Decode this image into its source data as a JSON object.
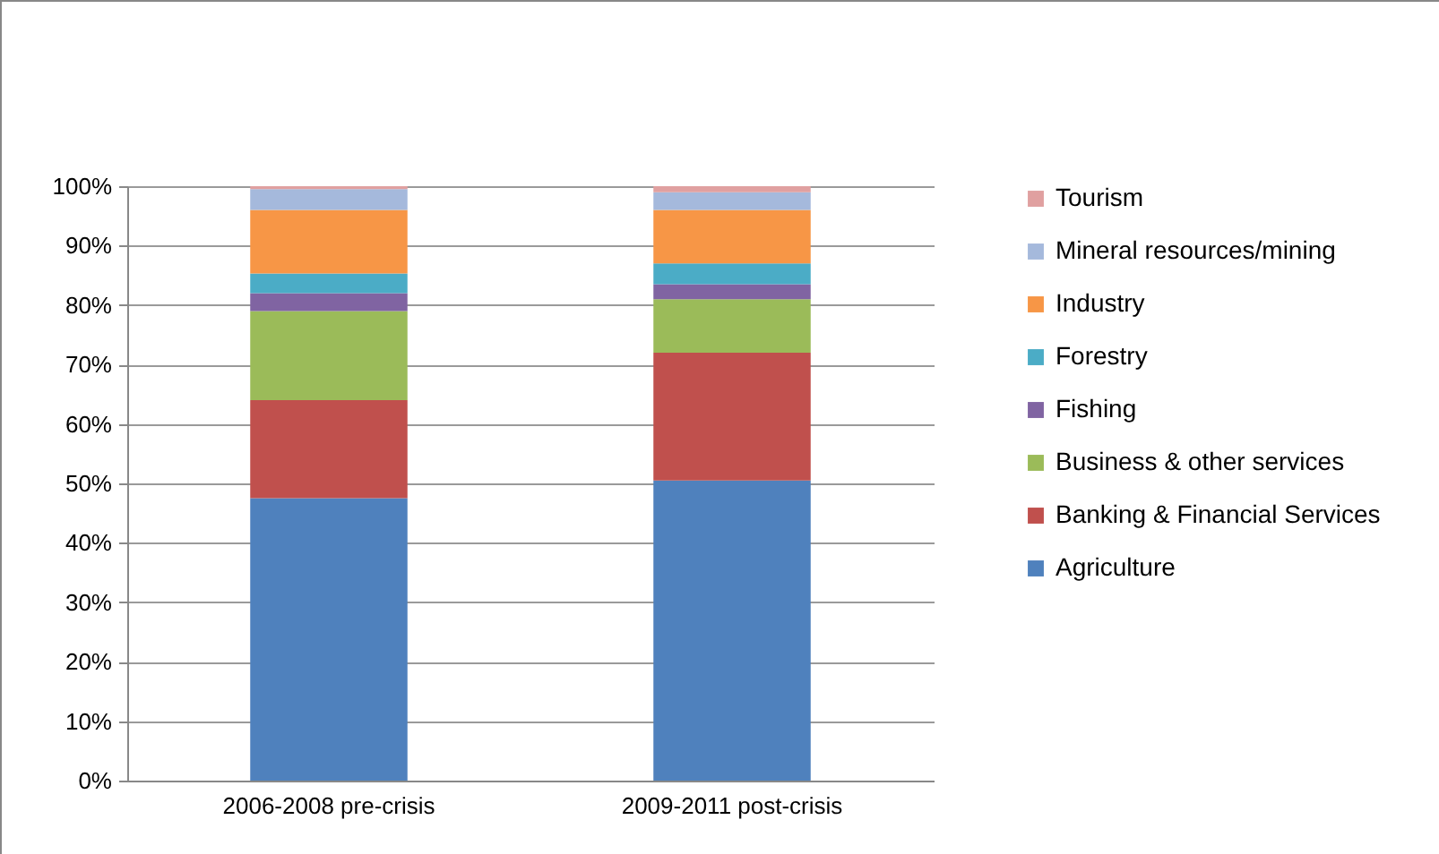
{
  "chart_data": {
    "type": "bar",
    "stacked": true,
    "categories": [
      "2006-2008 pre-crisis",
      "2009-2011 post-crisis"
    ],
    "series": [
      {
        "name": "Agriculture",
        "color": "#4f81bd",
        "values": [
          47.5,
          50.5
        ]
      },
      {
        "name": "Banking & Financial Services",
        "color": "#c0504d",
        "values": [
          16.5,
          21.5
        ]
      },
      {
        "name": "Business & other services",
        "color": "#9bbb59",
        "values": [
          15,
          9
        ]
      },
      {
        "name": "Fishing",
        "color": "#8064a2",
        "values": [
          3,
          2.5
        ]
      },
      {
        "name": "Forestry",
        "color": "#4bacc6",
        "values": [
          3.3,
          3.5
        ]
      },
      {
        "name": "Industry",
        "color": "#f79646",
        "values": [
          10.7,
          9
        ]
      },
      {
        "name": "Mineral resources/mining",
        "color": "#a5b9dc",
        "values": [
          3.5,
          3
        ]
      },
      {
        "name": "Tourism",
        "color": "#e0a0a0",
        "values": [
          0.5,
          1
        ]
      }
    ],
    "ylim": [
      0,
      100
    ],
    "yticks": [
      {
        "value": 0,
        "label": "0%"
      },
      {
        "value": 10,
        "label": "10%"
      },
      {
        "value": 20,
        "label": "20%"
      },
      {
        "value": 30,
        "label": "30%"
      },
      {
        "value": 40,
        "label": "40%"
      },
      {
        "value": 50,
        "label": "50%"
      },
      {
        "value": 60,
        "label": "60%"
      },
      {
        "value": 70,
        "label": "70%"
      },
      {
        "value": 80,
        "label": "80%"
      },
      {
        "value": 90,
        "label": "90%"
      },
      {
        "value": 100,
        "label": "100%"
      }
    ],
    "grid": "y",
    "legend": "right"
  }
}
